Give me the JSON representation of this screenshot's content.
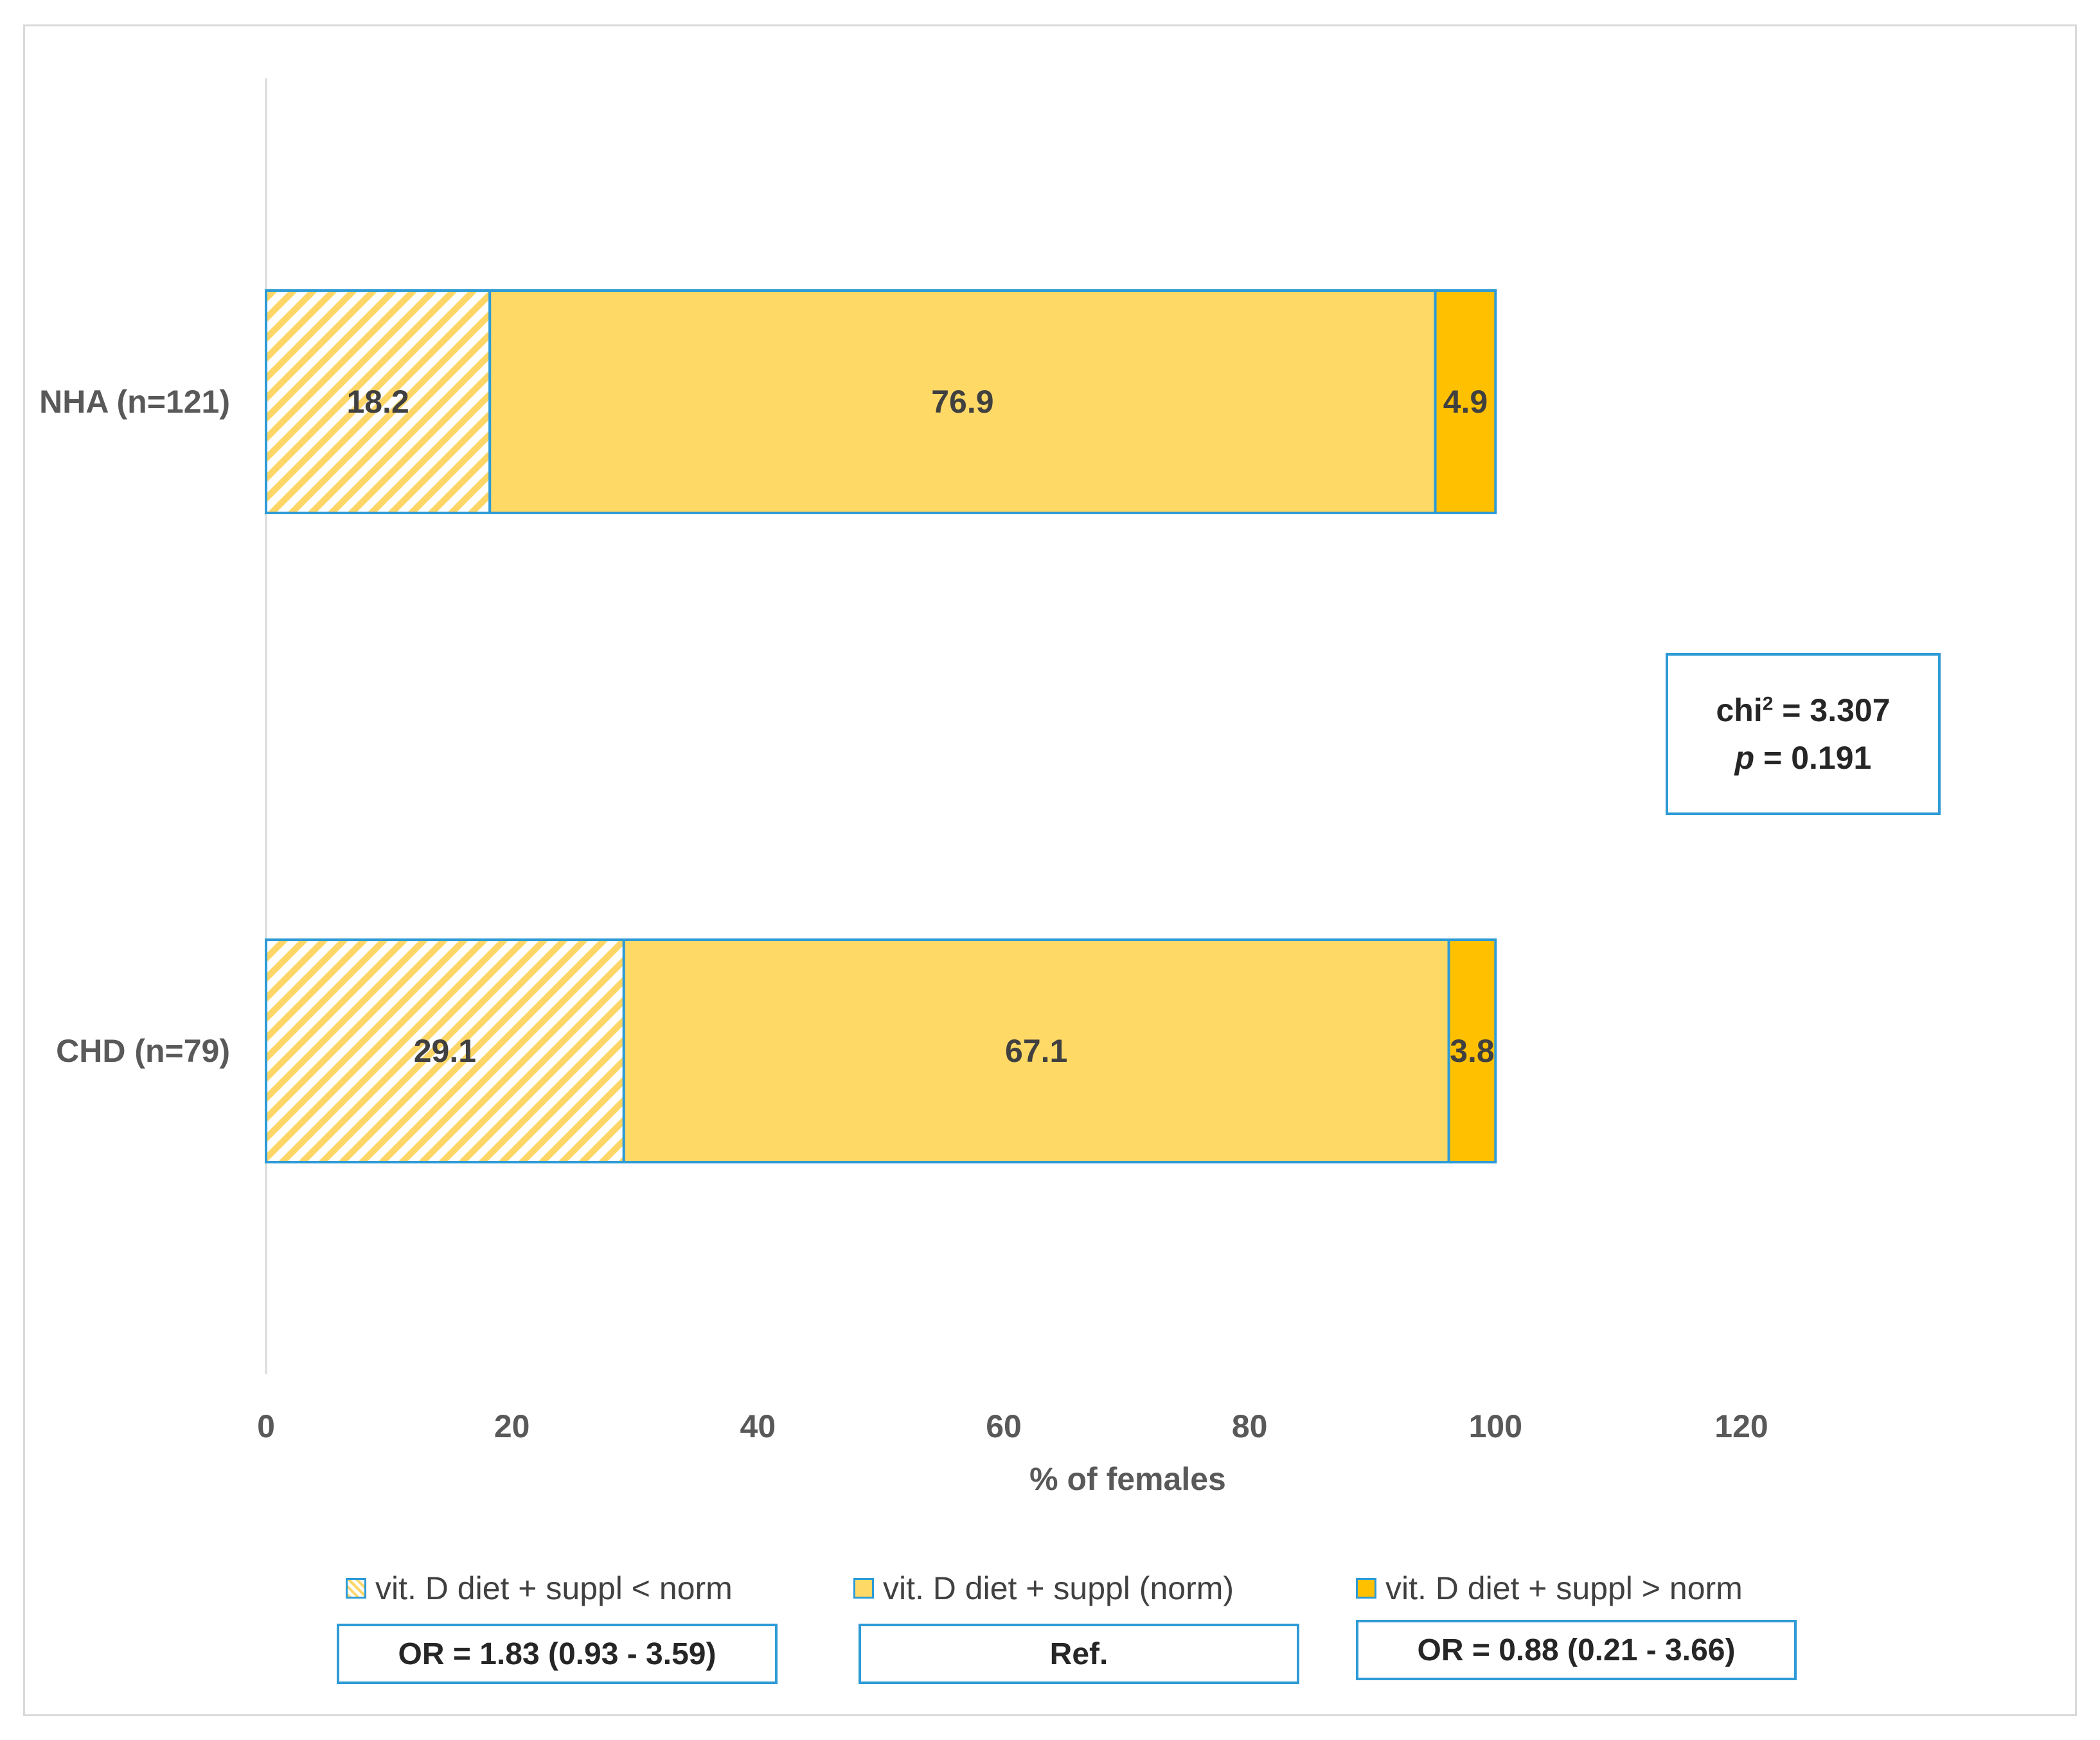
{
  "chart_data": {
    "type": "bar",
    "orientation": "horizontal",
    "stacked": true,
    "categories": [
      "NHA (n=121)",
      "CHD (n=79)"
    ],
    "series": [
      {
        "name": "vit. D diet + suppl < norm",
        "values": [
          18.2,
          29.1
        ],
        "color": "#ffd966",
        "pattern": "hatched"
      },
      {
        "name": "vit. D diet + suppl (norm)",
        "values": [
          76.9,
          67.1
        ],
        "color": "#ffd966"
      },
      {
        "name": "vit. D diet + suppl > norm",
        "values": [
          4.9,
          3.8
        ],
        "color": "#ffc000"
      }
    ],
    "data_labels": [
      [
        "18.2",
        "76.9",
        "4.9"
      ],
      [
        "29.1",
        "67.1",
        "3.8"
      ]
    ],
    "xlabel": "% of females",
    "ylabel": "",
    "xlim": [
      0,
      120
    ],
    "x_ticks": [
      0,
      20,
      40,
      60,
      80,
      100,
      120
    ],
    "grid": false,
    "legend_position": "bottom",
    "bar_border_color": "#2e9bd6"
  },
  "stats": {
    "chi_prefix": "chi",
    "chi_sup": "2",
    "chi_value": " = 3.307",
    "p_symbol": "p",
    "p_value": " = 0.191"
  },
  "odds_ratios": [
    "OR = 1.83 (0.93 - 3.59)",
    "Ref.",
    "OR = 0.88 (0.21 - 3.66)"
  ]
}
